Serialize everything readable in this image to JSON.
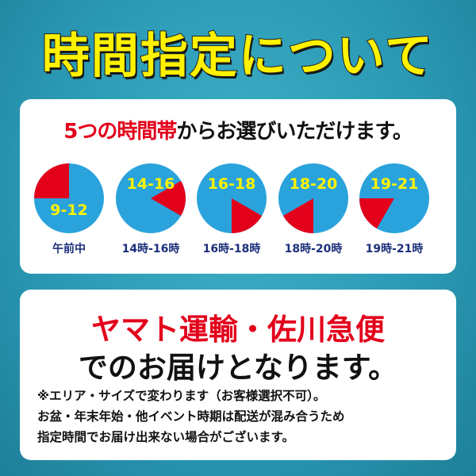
{
  "title": "時間指定について",
  "card1": {
    "heading_red": "5つの時間帯",
    "heading_black": "からお選びいただけます。",
    "slots": [
      {
        "range": "9-12",
        "label": "午前中",
        "start": 9,
        "end": 12
      },
      {
        "range": "14-16",
        "label": "14時-16時",
        "start": 14,
        "end": 16
      },
      {
        "range": "16-18",
        "label": "16時-18時",
        "start": 16,
        "end": 18
      },
      {
        "range": "18-20",
        "label": "18時-20時",
        "start": 18,
        "end": 20
      },
      {
        "range": "19-21",
        "label": "19時-21時",
        "start": 19,
        "end": 21
      }
    ]
  },
  "card2": {
    "line_red": "ヤマト運輸・佐川急便",
    "line_black": "でのお届けとなります。",
    "notes": [
      "※エリア・サイズで変わります（お客様選択不可）。",
      "お盆・年末年始・他イベント時期は配送が混み合うため",
      "指定時間でお届け出来ない場合がございます。"
    ]
  },
  "colors": {
    "clock_face": "#2aa3dc",
    "slot_wedge": "#e3001b",
    "range_text": "#fff200",
    "sea": "#2a98b3"
  }
}
